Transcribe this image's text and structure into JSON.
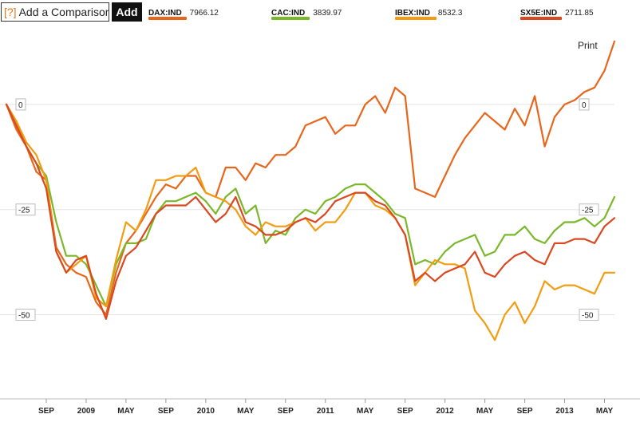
{
  "toolbar": {
    "help_label": "[?]",
    "compare_placeholder": "Add a Comparison",
    "add_label": "Add"
  },
  "print_label": "Print",
  "legend": [
    {
      "ticker": "DAX:IND",
      "value": "7966.12",
      "color": "#e8661c"
    },
    {
      "ticker": "CAC:IND",
      "value": "3839.97",
      "color": "#7ab829"
    },
    {
      "ticker": "IBEX:IND",
      "value": "8532.3",
      "color": "#f39c12"
    },
    {
      "ticker": "SX5E:IND",
      "value": "2711.85",
      "color": "#d9481f"
    }
  ],
  "chart_data": {
    "type": "line",
    "xlabel": "",
    "ylabel": "",
    "grid": true,
    "ylim": [
      -70,
      18
    ],
    "y_ticks": [
      0,
      -25,
      -50
    ],
    "y_tick_labels": [
      "0",
      "-25",
      "-50"
    ],
    "x_ticks": [
      "SEP",
      "2009",
      "MAY",
      "SEP",
      "2010",
      "MAY",
      "SEP",
      "2011",
      "MAY",
      "SEP",
      "2012",
      "MAY",
      "SEP",
      "2013",
      "MAY"
    ],
    "x": [
      "May 2008",
      "Jun 2008",
      "Jul 2008",
      "Aug 2008",
      "Sep 2008",
      "Oct 2008",
      "Nov 2008",
      "Dec 2008",
      "Jan 2009",
      "Feb 2009",
      "Mar 2009",
      "Apr 2009",
      "May 2009",
      "Jun 2009",
      "Jul 2009",
      "Aug 2009",
      "Sep 2009",
      "Oct 2009",
      "Nov 2009",
      "Dec 2009",
      "Jan 2010",
      "Feb 2010",
      "Mar 2010",
      "Apr 2010",
      "May 2010",
      "Jun 2010",
      "Jul 2010",
      "Aug 2010",
      "Sep 2010",
      "Oct 2010",
      "Nov 2010",
      "Dec 2010",
      "Jan 2011",
      "Feb 2011",
      "Mar 2011",
      "Apr 2011",
      "May 2011",
      "Jun 2011",
      "Jul 2011",
      "Aug 2011",
      "Sep 2011",
      "Oct 2011",
      "Nov 2011",
      "Dec 2011",
      "Jan 2012",
      "Feb 2012",
      "Mar 2012",
      "Apr 2012",
      "May 2012",
      "Jun 2012",
      "Jul 2012",
      "Aug 2012",
      "Sep 2012",
      "Oct 2012",
      "Nov 2012",
      "Dec 2012",
      "Jan 2013",
      "Feb 2013",
      "Mar 2013",
      "Apr 2013",
      "May 2013",
      "Jun 2013"
    ],
    "series": [
      {
        "name": "DAX:IND",
        "color": "#e8661c",
        "values": [
          0,
          -6,
          -10,
          -16,
          -18,
          -34,
          -38,
          -40,
          -41,
          -47,
          -50,
          -40,
          -33,
          -30,
          -26,
          -22,
          -19,
          -20,
          -17,
          -17,
          -21,
          -22,
          -15,
          -15,
          -18,
          -14,
          -15,
          -12,
          -12,
          -10,
          -5,
          -4,
          -3,
          -7,
          -5,
          -5,
          0,
          2,
          -2,
          4,
          2,
          -20,
          -21,
          -22,
          -17,
          -12,
          -8,
          -5,
          -2,
          -4,
          -6,
          -1,
          -5,
          2,
          -10,
          -3,
          0,
          1,
          3,
          4,
          8,
          15
        ]
      },
      {
        "name": "CAC:IND",
        "color": "#7ab829",
        "values": [
          0,
          -4,
          -10,
          -14,
          -17,
          -28,
          -36,
          -36,
          -38,
          -43,
          -48,
          -38,
          -33,
          -33,
          -32,
          -26,
          -23,
          -23,
          -22,
          -21,
          -23,
          -26,
          -22,
          -20,
          -26,
          -24,
          -33,
          -30,
          -31,
          -27,
          -25,
          -26,
          -23,
          -22,
          -20,
          -19,
          -19,
          -21,
          -23,
          -26,
          -27,
          -38,
          -37,
          -38,
          -35,
          -33,
          -32,
          -31,
          -36,
          -35,
          -31,
          -31,
          -29,
          -32,
          -33,
          -30,
          -28,
          -28,
          -27,
          -29,
          -27,
          -22
        ]
      },
      {
        "name": "IBEX:IND",
        "color": "#f39c12",
        "values": [
          0,
          -4,
          -9,
          -12,
          -18,
          -35,
          -40,
          -38,
          -36,
          -46,
          -48,
          -37,
          -28,
          -30,
          -25,
          -18,
          -18,
          -17,
          -17,
          -15,
          -21,
          -22,
          -23,
          -25,
          -29,
          -31,
          -28,
          -29,
          -29,
          -28,
          -27,
          -30,
          -28,
          -28,
          -25,
          -21,
          -21,
          -24,
          -25,
          -27,
          -31,
          -43,
          -40,
          -37,
          -38,
          -38,
          -39,
          -49,
          -52,
          -56,
          -50,
          -47,
          -52,
          -48,
          -42,
          -44,
          -43,
          -43,
          -44,
          -45,
          -40,
          -40
        ]
      },
      {
        "name": "SX5E:IND",
        "color": "#d9481f",
        "values": [
          0,
          -5,
          -10,
          -14,
          -20,
          -35,
          -40,
          -37,
          -36,
          -45,
          -51,
          -42,
          -36,
          -34,
          -30,
          -26,
          -24,
          -24,
          -24,
          -22,
          -25,
          -28,
          -26,
          -22,
          -28,
          -29,
          -31,
          -31,
          -30,
          -28,
          -27,
          -28,
          -26,
          -23,
          -22,
          -21,
          -21,
          -23,
          -24,
          -27,
          -31,
          -42,
          -40,
          -42,
          -40,
          -39,
          -38,
          -35,
          -40,
          -41,
          -38,
          -36,
          -35,
          -37,
          -38,
          -33,
          -33,
          -32,
          -32,
          -33,
          -29,
          -27
        ]
      }
    ]
  }
}
